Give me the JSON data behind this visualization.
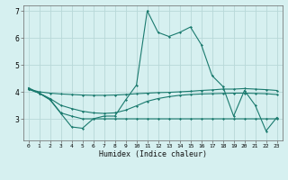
{
  "xlabel": "Humidex (Indice chaleur)",
  "bg_color": "#d6f0f0",
  "grid_color": "#b8d8d8",
  "line_color": "#1a7a6e",
  "x_values": [
    0,
    1,
    2,
    3,
    4,
    5,
    6,
    7,
    8,
    9,
    10,
    11,
    12,
    13,
    14,
    15,
    16,
    17,
    18,
    19,
    20,
    21,
    22,
    23
  ],
  "series1": [
    4.15,
    3.95,
    3.7,
    3.2,
    2.7,
    2.65,
    3.0,
    3.1,
    3.1,
    3.7,
    4.25,
    7.0,
    6.2,
    6.05,
    6.2,
    6.4,
    5.75,
    4.6,
    4.2,
    3.1,
    4.05,
    3.5,
    2.55,
    3.05
  ],
  "series2": [
    4.1,
    4.0,
    3.95,
    3.92,
    3.9,
    3.88,
    3.87,
    3.87,
    3.88,
    3.9,
    3.93,
    3.95,
    3.97,
    3.98,
    4.0,
    4.02,
    4.05,
    4.07,
    4.1,
    4.1,
    4.12,
    4.1,
    4.08,
    4.05
  ],
  "series3": [
    4.1,
    3.95,
    3.75,
    3.5,
    3.38,
    3.28,
    3.22,
    3.2,
    3.22,
    3.32,
    3.48,
    3.65,
    3.75,
    3.82,
    3.87,
    3.9,
    3.92,
    3.93,
    3.94,
    3.95,
    3.95,
    3.94,
    3.93,
    3.9
  ],
  "series4": [
    4.1,
    3.95,
    3.72,
    3.22,
    3.1,
    3.0,
    3.0,
    3.0,
    3.0,
    3.0,
    3.0,
    3.0,
    3.0,
    3.0,
    3.0,
    3.0,
    3.0,
    3.0,
    3.0,
    3.0,
    3.0,
    3.0,
    3.0,
    3.0
  ],
  "ylim": [
    2.2,
    7.2
  ],
  "yticks": [
    3,
    4,
    5,
    6,
    7
  ],
  "xlim": [
    -0.5,
    23.5
  ]
}
